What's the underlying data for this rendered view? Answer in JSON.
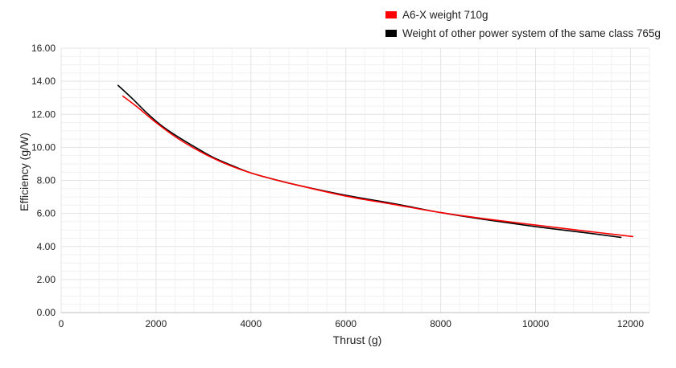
{
  "chart_data": {
    "type": "line",
    "title": "",
    "xlabel": "Thrust (g)",
    "ylabel": "Efficiency (g/W)",
    "xlim": [
      0,
      12400
    ],
    "ylim": [
      0,
      16
    ],
    "x_ticks": [
      0,
      2000,
      4000,
      6000,
      8000,
      10000,
      12000
    ],
    "x_tick_labels": [
      "0",
      "2000",
      "4000",
      "6000",
      "8000",
      "10000",
      "12000"
    ],
    "y_ticks": [
      0,
      2,
      4,
      6,
      8,
      10,
      12,
      14,
      16
    ],
    "y_tick_labels": [
      "0.00",
      "2.00",
      "4.00",
      "6.00",
      "8.00",
      "10.00",
      "12.00",
      "14.00",
      "16.00"
    ],
    "grid": true,
    "legend_position": "top-right",
    "series": [
      {
        "name": "A6-X weight 710g",
        "color": "#ff0000",
        "x": [
          1300,
          1600,
          2000,
          2400,
          2800,
          3200,
          3600,
          4000,
          4500,
          5000,
          6000,
          7000,
          8000,
          9000,
          10000,
          11000,
          12050
        ],
        "y": [
          13.1,
          12.45,
          11.5,
          10.65,
          9.95,
          9.35,
          8.85,
          8.45,
          8.05,
          7.7,
          7.05,
          6.55,
          6.05,
          5.65,
          5.3,
          4.95,
          4.6
        ]
      },
      {
        "name": "Weight of other power system of the same class 765g",
        "color": "#000000",
        "x": [
          1200,
          1500,
          1800,
          2100,
          2400,
          2800,
          3200,
          3600,
          4000,
          4500,
          5000,
          6000,
          7000,
          8000,
          9000,
          10000,
          11000,
          11800
        ],
        "y": [
          13.75,
          12.95,
          12.1,
          11.35,
          10.75,
          10.05,
          9.4,
          8.9,
          8.45,
          8.05,
          7.7,
          7.1,
          6.6,
          6.05,
          5.6,
          5.2,
          4.85,
          4.55
        ]
      }
    ]
  }
}
